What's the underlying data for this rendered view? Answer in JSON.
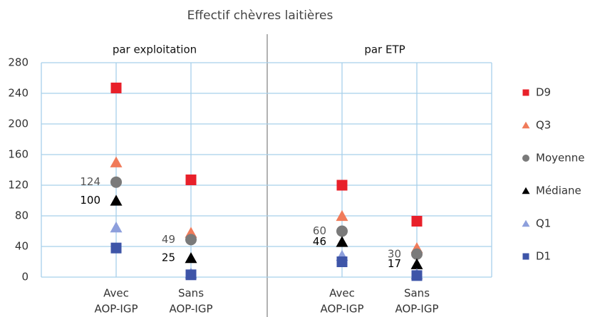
{
  "chart_data": {
    "type": "dot",
    "title": "Effectif chèvres laitières",
    "panels": [
      {
        "title": "par exploitation",
        "categories": [
          [
            "Avec",
            "AOP-IGP"
          ],
          [
            "Sans",
            "AOP-IGP"
          ]
        ]
      },
      {
        "title": "par ETP",
        "categories": [
          [
            "Avec",
            "AOP-IGP"
          ],
          [
            "Sans",
            "AOP-IGP"
          ]
        ]
      }
    ],
    "ylim": [
      0,
      280
    ],
    "yticks": [
      0,
      40,
      80,
      120,
      160,
      200,
      240,
      280
    ],
    "grid": true,
    "series": [
      {
        "name": "D9",
        "color": "#e8202a",
        "marker": "square",
        "values": [
          [
            247,
            127
          ],
          [
            120,
            73
          ]
        ]
      },
      {
        "name": "Q3",
        "color": "#f07b5a",
        "marker": "triangle",
        "values": [
          [
            150,
            58
          ],
          [
            80,
            38
          ]
        ]
      },
      {
        "name": "Moyenne",
        "color": "#7a7a7a",
        "marker": "circle",
        "values": [
          [
            124,
            49
          ],
          [
            60,
            30
          ]
        ],
        "data_labels": true
      },
      {
        "name": "Médiane",
        "color": "#000000",
        "marker": "triangle",
        "values": [
          [
            100,
            25
          ],
          [
            46,
            17
          ]
        ],
        "data_labels": true
      },
      {
        "name": "Q1",
        "color": "#8d9fdc",
        "marker": "triangle",
        "values": [
          [
            65,
            5
          ],
          [
            28,
            4
          ]
        ]
      },
      {
        "name": "D1",
        "color": "#3e55a8",
        "marker": "square",
        "values": [
          [
            38,
            3
          ],
          [
            20,
            2
          ]
        ]
      }
    ]
  }
}
